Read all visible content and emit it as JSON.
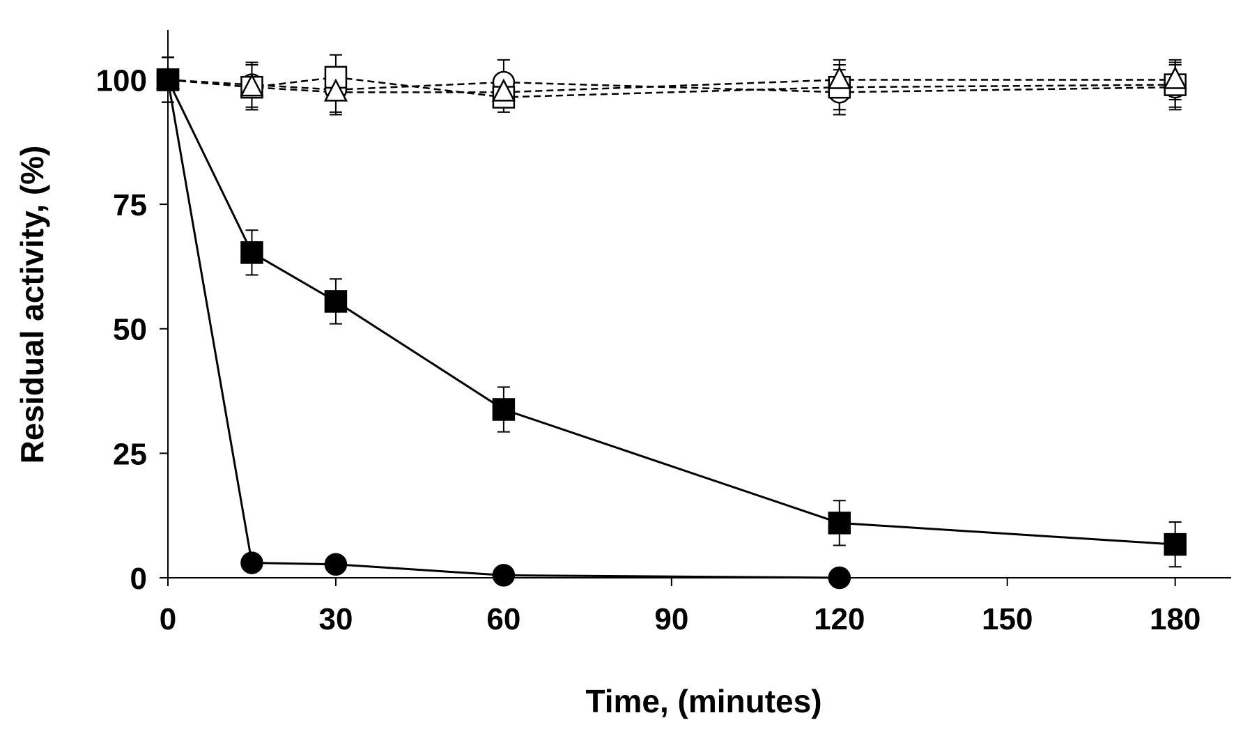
{
  "chart_data": {
    "type": "line",
    "title": "",
    "xlabel": "Time, (minutes)",
    "ylabel": "Residual activity, (%)",
    "xlim": [
      0,
      190
    ],
    "ylim": [
      0,
      110
    ],
    "xticks": [
      0,
      30,
      60,
      90,
      120,
      150,
      180
    ],
    "yticks": [
      0,
      25,
      50,
      75,
      100
    ],
    "xtick_labels": [
      "0",
      "30",
      "60",
      "90",
      "120",
      "150",
      "180"
    ],
    "ytick_labels": [
      "0",
      "25",
      "50",
      "75",
      "100"
    ],
    "grid": false,
    "legend": "none",
    "series": [
      {
        "name": "filled-circle",
        "marker": "circle",
        "filled": true,
        "line": "solid",
        "x": [
          0,
          15,
          30,
          60,
          120
        ],
        "values": [
          100,
          3,
          2.7,
          0.5,
          0
        ],
        "errors": [
          0,
          0,
          0,
          0,
          0
        ]
      },
      {
        "name": "filled-square",
        "marker": "square",
        "filled": true,
        "line": "solid",
        "x": [
          0,
          15,
          30,
          60,
          120,
          180
        ],
        "values": [
          100,
          65.3,
          55.5,
          33.8,
          11,
          6.7
        ],
        "errors": [
          4.5,
          4.5,
          4.5,
          4.5,
          4.5,
          4.5
        ]
      },
      {
        "name": "open-circle",
        "marker": "circle",
        "filled": false,
        "line": "dashed",
        "x": [
          0,
          15,
          30,
          60,
          120,
          180
        ],
        "values": [
          100,
          99,
          98,
          99.5,
          97.5,
          98.5
        ],
        "errors": [
          4.5,
          4.5,
          4.5,
          4.5,
          4.5,
          4.5
        ]
      },
      {
        "name": "open-square",
        "marker": "square",
        "filled": false,
        "line": "dashed",
        "x": [
          0,
          15,
          30,
          60,
          120,
          180
        ],
        "values": [
          100,
          98.5,
          100.5,
          96.5,
          98.5,
          99
        ],
        "errors": [
          4.5,
          4.5,
          4.5,
          3,
          4.5,
          4.5
        ]
      },
      {
        "name": "open-triangle",
        "marker": "triangle",
        "filled": false,
        "line": "dashed",
        "x": [
          0,
          15,
          30,
          60,
          120,
          180
        ],
        "values": [
          100,
          98.5,
          97.5,
          97.5,
          100,
          100
        ],
        "errors": [
          4.5,
          4.5,
          4.5,
          3,
          4,
          4
        ]
      }
    ]
  }
}
